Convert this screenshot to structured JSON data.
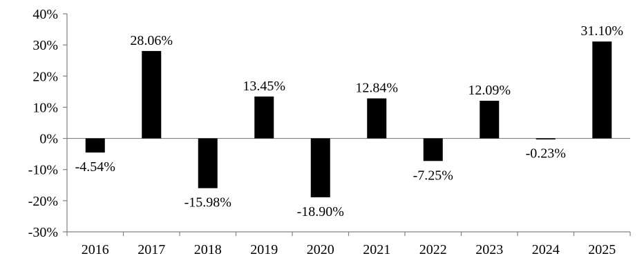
{
  "chart_data": {
    "type": "bar",
    "title": "",
    "xlabel": "",
    "ylabel": "",
    "categories": [
      "2016",
      "2017",
      "2018",
      "2019",
      "2020",
      "2021",
      "2022",
      "2023",
      "2024",
      "2025"
    ],
    "values": [
      -4.54,
      28.06,
      -15.98,
      13.45,
      -18.9,
      12.84,
      -7.25,
      12.09,
      -0.23,
      31.1
    ],
    "data_labels": [
      "-4.54%",
      "28.06%",
      "-15.98%",
      "13.45%",
      "-18.90%",
      "12.84%",
      "-7.25%",
      "12.09%",
      "-0.23%",
      "31.10%"
    ],
    "ylim": [
      -30,
      40
    ],
    "yticks": [
      40,
      30,
      20,
      10,
      0,
      -10,
      -20,
      -30
    ],
    "ytick_labels": [
      "40%",
      "30%",
      "20%",
      "10%",
      "0%",
      "-10%",
      "-20%",
      "-30%"
    ],
    "grid": false,
    "legend": "none",
    "bar_color": "#000000",
    "axis_color": "#808080"
  }
}
